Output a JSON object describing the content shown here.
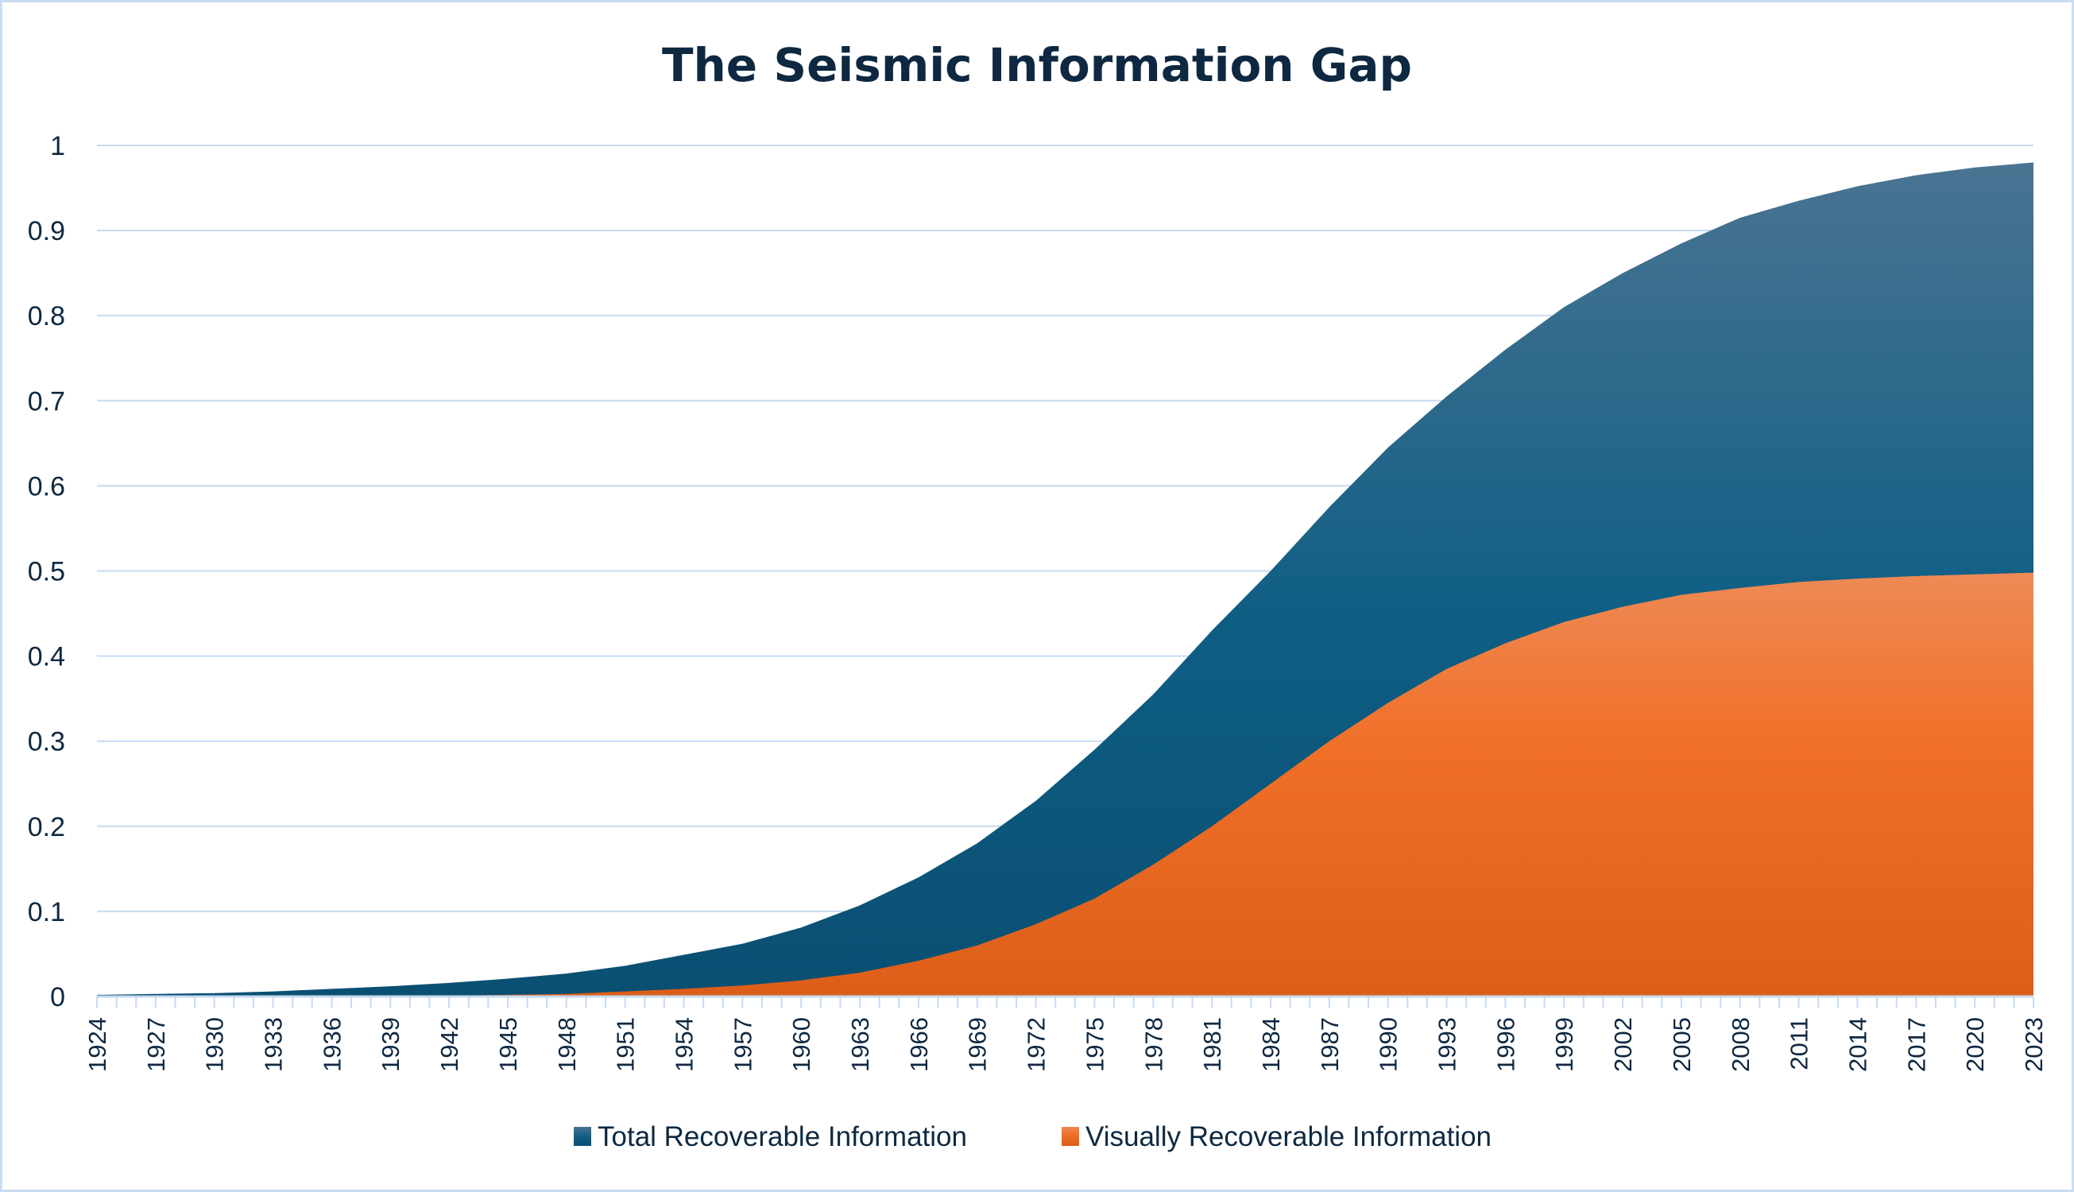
{
  "chart_data": {
    "type": "area",
    "title": "The Seismic Information Gap",
    "xlabel": "",
    "ylabel": "",
    "ylim": [
      0,
      1
    ],
    "yticks": [
      "0",
      "0.1",
      "0.2",
      "0.3",
      "0.4",
      "0.5",
      "0.6",
      "0.7",
      "0.8",
      "0.9",
      "1"
    ],
    "xrange": [
      1924,
      2023
    ],
    "xtick_step": 3,
    "grid": true,
    "legend_position": "bottom",
    "x": [
      1924,
      1927,
      1930,
      1933,
      1936,
      1939,
      1942,
      1945,
      1948,
      1951,
      1954,
      1957,
      1960,
      1963,
      1966,
      1969,
      1972,
      1975,
      1978,
      1981,
      1984,
      1987,
      1990,
      1993,
      1996,
      1999,
      2002,
      2005,
      2008,
      2011,
      2014,
      2017,
      2020,
      2023
    ],
    "series": [
      {
        "name": "Total Recoverable Information",
        "color_top": "#4a7492",
        "color_mid": "#0e5e84",
        "color_bottom": "#0a4f72",
        "values": [
          0.002,
          0.003,
          0.004,
          0.006,
          0.009,
          0.012,
          0.016,
          0.021,
          0.027,
          0.036,
          0.049,
          0.062,
          0.081,
          0.107,
          0.14,
          0.18,
          0.23,
          0.29,
          0.355,
          0.43,
          0.5,
          0.575,
          0.645,
          0.705,
          0.76,
          0.81,
          0.85,
          0.885,
          0.915,
          0.935,
          0.952,
          0.965,
          0.974,
          0.98
        ]
      },
      {
        "name": "Visually Recoverable Information",
        "color_top": "#ee8a56",
        "color_mid": "#f07028",
        "color_bottom": "#dc5e18",
        "values": [
          0,
          0,
          0,
          0,
          0,
          0.001,
          0.001,
          0.002,
          0.003,
          0.006,
          0.009,
          0.013,
          0.019,
          0.028,
          0.042,
          0.06,
          0.085,
          0.115,
          0.155,
          0.2,
          0.25,
          0.3,
          0.345,
          0.385,
          0.415,
          0.44,
          0.458,
          0.472,
          0.48,
          0.487,
          0.491,
          0.494,
          0.496,
          0.498
        ]
      }
    ]
  }
}
